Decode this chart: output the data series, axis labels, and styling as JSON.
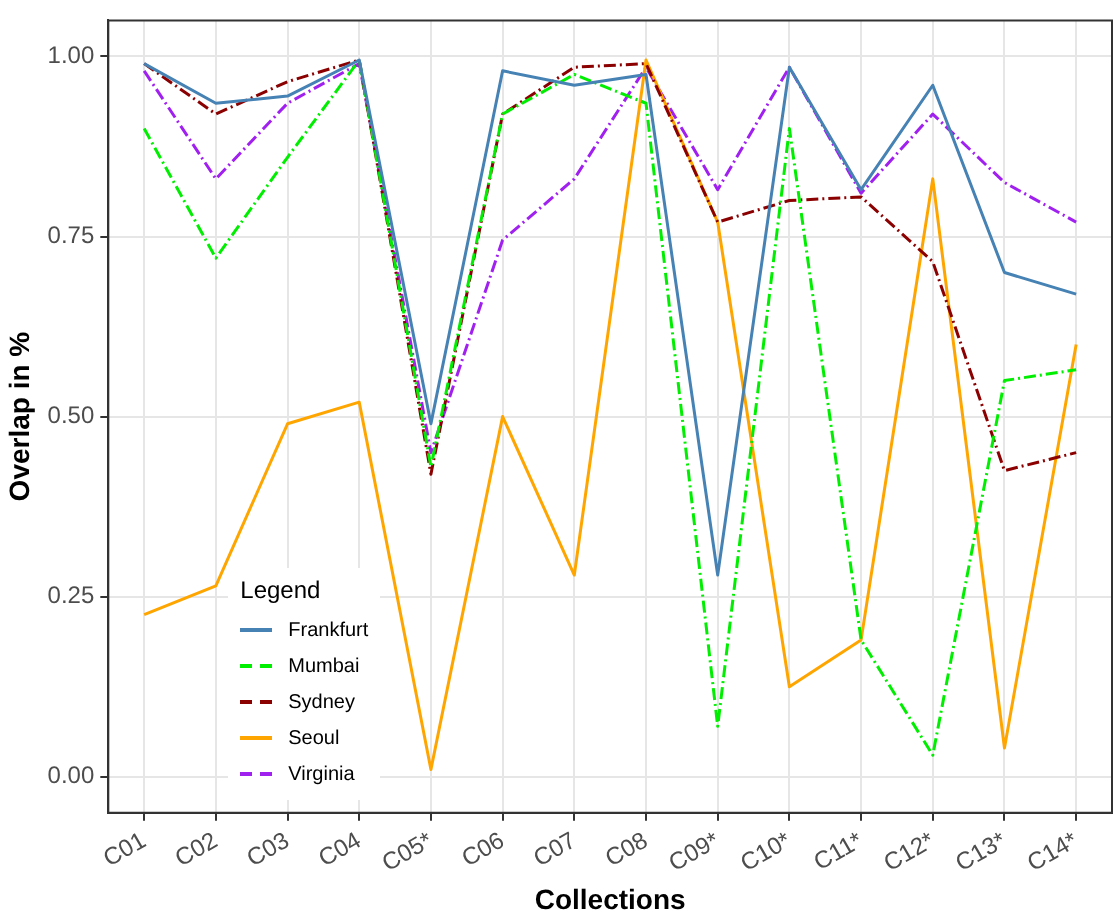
{
  "chart_data": {
    "type": "line",
    "xlabel": "Collections",
    "ylabel": "Overlap in %",
    "legend_title": "Legend",
    "categories": [
      "C01",
      "C02",
      "C03",
      "C04",
      "C05*",
      "C06",
      "C07",
      "C08",
      "C09*",
      "C10*",
      "C11*",
      "C12*",
      "C13*",
      "C14*"
    ],
    "ylim": [
      -0.05,
      1.05
    ],
    "yticks": [
      {
        "value": 0,
        "label": "0.00"
      },
      {
        "value": 0.25,
        "label": "0.25"
      },
      {
        "value": 0.5,
        "label": "0.50"
      },
      {
        "value": 0.75,
        "label": "0.75"
      },
      {
        "value": 1,
        "label": "1.00"
      }
    ],
    "grid": true,
    "legend": "bottom left",
    "marker": "none",
    "series": [
      {
        "name": "Frankfurt",
        "color": "#4682b4",
        "line_style": "solid",
        "values": [
          0.99,
          0.935,
          0.945,
          0.995,
          0.49,
          0.98,
          0.96,
          0.975,
          0.28,
          0.985,
          0.815,
          0.96,
          0.7,
          0.67
        ]
      },
      {
        "name": "Mumbai",
        "color": "#00ee00",
        "line_style": "dashed",
        "values": [
          0.9,
          0.72,
          0.86,
          0.995,
          0.43,
          0.92,
          0.975,
          0.935,
          0.07,
          0.9,
          0.19,
          0.03,
          0.55,
          0.565
        ]
      },
      {
        "name": "Sydney",
        "color": "#8b0000",
        "line_style": "dashed",
        "values": [
          0.99,
          0.92,
          0.965,
          0.995,
          0.42,
          0.92,
          0.985,
          0.99,
          0.77,
          0.8,
          0.805,
          0.715,
          0.425,
          0.45
        ]
      },
      {
        "name": "Seoul",
        "color": "#ffa500",
        "line_style": "solid",
        "values": [
          0.225,
          0.265,
          0.49,
          0.52,
          0.01,
          0.5,
          0.28,
          0.995,
          0.77,
          0.125,
          0.19,
          0.83,
          0.04,
          0.6
        ]
      },
      {
        "name": "Virginia",
        "color": "#a020f0",
        "line_style": "dashed",
        "values": [
          0.98,
          0.83,
          0.935,
          0.99,
          0.45,
          0.745,
          0.83,
          0.985,
          0.815,
          0.985,
          0.81,
          0.92,
          0.825,
          0.77
        ]
      }
    ]
  }
}
